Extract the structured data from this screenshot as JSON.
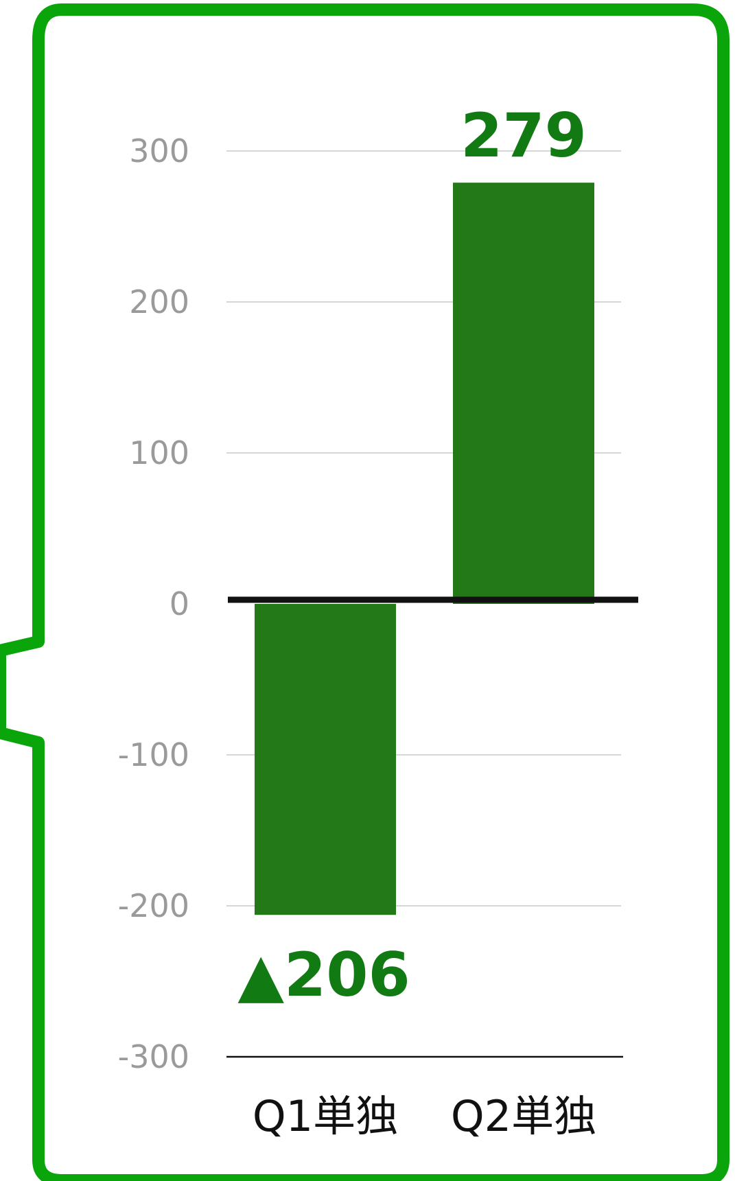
{
  "chart_data": {
    "type": "bar",
    "categories": [
      "Q1単独",
      "Q2単独"
    ],
    "values": [
      -206,
      279
    ],
    "data_labels": [
      "▲206",
      "279"
    ],
    "yticks": [
      300,
      200,
      100,
      0,
      -100,
      -200,
      -300
    ],
    "ytick_labels": [
      "300",
      "200",
      "100",
      "0",
      "-100",
      "-200",
      "-300"
    ],
    "ylim": [
      -300,
      300
    ],
    "grid": true,
    "legend": "none",
    "colors": {
      "bar": "#237818",
      "label": "#127a12",
      "border": "#0aa50a",
      "grid": "#c8c8c8",
      "zero_line": "#111111",
      "tick_text": "#9a9a9a",
      "category_text": "#111111"
    }
  }
}
